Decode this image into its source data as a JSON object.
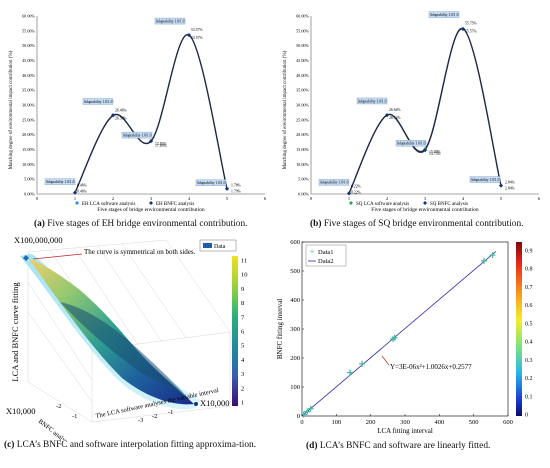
{
  "panels": {
    "a": {
      "caption_letter": "(a)",
      "caption": "Five stages of EH bridge environmental contribution.",
      "ylabel": "Matching degree of environmental impact contribution (%)",
      "xlabel": "Five stages of bridge environmental contribution",
      "legend": [
        "EH LCA software analysis",
        "EH BNFC analysis"
      ],
      "yticks": [
        "0.00%",
        "5.00%",
        "10.00%",
        "15.00%",
        "20.00%",
        "25.00%",
        "30.00%",
        "35.00%",
        "40.00%",
        "45.00%",
        "50.00%",
        "55.00%",
        "60.00%"
      ],
      "xticks": [
        "0",
        "1",
        "2",
        "3",
        "4",
        "5",
        "6"
      ],
      "boxes": [
        "Adaptability 1.0/1.0",
        "Adaptability 1.0/1.0",
        "Adaptability 1.0/1.0",
        "Adaptability 1.0/1.0",
        "Adaptability 1.0/1.0"
      ],
      "labels_lca": [
        "0.46%",
        "26.46%",
        "17.83%",
        "53.57%",
        "1.78%"
      ],
      "labels_bnfc": [
        "0.46%",
        "26.58%",
        "17.83%",
        "53.57%",
        "1.79%"
      ]
    },
    "b": {
      "caption_letter": "(b)",
      "caption": "Five stages of SQ bridge environmental contribution.",
      "ylabel": "Matching degree of environmental impact contribution (%)",
      "xlabel": "Five stages of bridge environmental contribution",
      "legend": [
        "SQ LCA software analysis",
        "SQ BNFC analysis"
      ],
      "yticks": [
        "0.00%",
        "5.00%",
        "10.00%",
        "15.00%",
        "20.00%",
        "25.00%",
        "30.00%",
        "35.00%",
        "40.00%",
        "45.00%",
        "50.00%",
        "55.00%",
        "60.00%"
      ],
      "xticks": [
        "0",
        "1",
        "2",
        "3",
        "4",
        "5",
        "6"
      ],
      "boxes": [
        "Adaptability 1.0/1.0",
        "Adaptability 1.0/1.0",
        "Adaptability 1.0/1.0",
        "Adaptability 1.0/1.0",
        "Adaptability 1.0/1.0"
      ],
      "labels_lca": [
        "0.22%",
        "26.64%",
        "15.09%",
        "55.75%",
        "2.84%"
      ],
      "labels_bnfc": [
        "0.22%",
        "26.54%",
        "14.73%",
        "55.57%",
        "2.84%"
      ]
    },
    "c": {
      "caption_letter": "(c)",
      "caption": "LCA’s BNFC and software interpolation fitting approxima-tion.",
      "zlabel": "LCA and BNFC curve fitting",
      "xlabel": "BNFC analyses the variable interval",
      "ylabel": "The LCA software analyses the variable interval",
      "zmult": "X100,000,000",
      "xmult": "X10,000",
      "ymult": "X10,000",
      "annotation": "The curve is symmetrical on both sides.",
      "legend": "Data",
      "colorbar_ticks": [
        "11",
        "10",
        "9",
        "8",
        "7",
        "6",
        "5",
        "4",
        "3",
        "2",
        "1"
      ],
      "xticks": [
        "-2",
        "-1"
      ],
      "yticks": [
        "-3",
        "-2",
        "-1"
      ]
    },
    "d": {
      "caption_letter": "(d)",
      "caption": "LCA’s BNFC and software are linearly fitted.",
      "xlabel": "LCA fitting interval",
      "ylabel": "BNFC fitting interval",
      "legend": [
        "Data1",
        "Data2"
      ],
      "equation": "Y=3E-06x²+1.0026x+0.2577",
      "xticks": [
        "0",
        "100",
        "200",
        "300",
        "400",
        "500",
        "600"
      ],
      "yticks": [
        "0",
        "100",
        "200",
        "300",
        "400",
        "500",
        "600"
      ],
      "colorbar_ticks": [
        "0.9",
        "0.8",
        "0.7",
        "0.6",
        "0.5",
        "0.4",
        "0.3",
        "0.2",
        "0.1",
        "0"
      ]
    }
  },
  "chart_data": [
    {
      "type": "line",
      "panel": "a",
      "x": [
        1,
        2,
        3,
        4,
        5
      ],
      "series": [
        {
          "name": "EH LCA software analysis",
          "values": [
            0.46,
            26.46,
            17.83,
            53.57,
            1.78
          ]
        },
        {
          "name": "EH BNFC analysis",
          "values": [
            0.46,
            26.58,
            17.83,
            53.57,
            1.79
          ]
        }
      ],
      "ylim": [
        0,
        60
      ],
      "xlim": [
        0,
        6
      ],
      "grid": false,
      "legend_position": "bottom"
    },
    {
      "type": "line",
      "panel": "b",
      "x": [
        1,
        2,
        3,
        4,
        5
      ],
      "series": [
        {
          "name": "SQ LCA software analysis",
          "values": [
            0.22,
            26.64,
            15.09,
            55.75,
            2.84
          ]
        },
        {
          "name": "SQ BNFC analysis",
          "values": [
            0.22,
            26.54,
            14.73,
            55.57,
            2.84
          ]
        }
      ],
      "ylim": [
        0,
        60
      ],
      "xlim": [
        0,
        6
      ],
      "grid": false,
      "legend_position": "bottom"
    },
    {
      "type": "area",
      "panel": "c",
      "description_values": {
        "colorbar_range": [
          1,
          11
        ]
      },
      "legend_position": "top-right"
    },
    {
      "type": "scatter",
      "panel": "d",
      "series": [
        {
          "name": "Data1",
          "x": [
            5,
            15,
            25,
            140,
            175,
            265,
            270,
            530,
            555
          ],
          "y": [
            5,
            15,
            25,
            150,
            180,
            265,
            270,
            535,
            555
          ]
        },
        {
          "name": "Data2",
          "fit": "Y=3E-06x²+1.0026x+0.2577"
        }
      ],
      "xlim": [
        0,
        600
      ],
      "ylim": [
        0,
        600
      ],
      "grid": false,
      "legend_position": "top-left"
    }
  ]
}
